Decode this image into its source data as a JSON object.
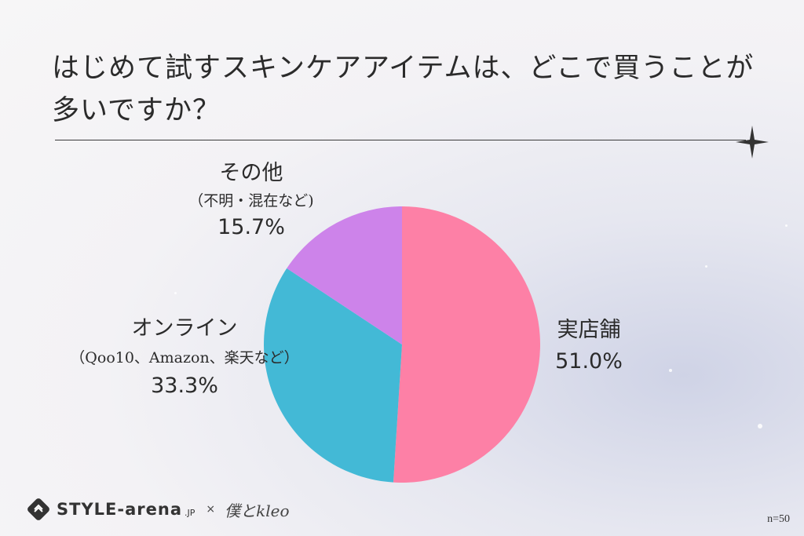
{
  "title": "はじめて試すスキンケアアイテムは、どこで買うことが多いですか？",
  "chart_data": {
    "type": "pie",
    "slices": [
      {
        "name": "実店舗",
        "note": "",
        "value": 51.0,
        "label": "51.0%",
        "color": "#fd80a6"
      },
      {
        "name": "オンライン",
        "note": "（Qoo10、Amazon、楽天など）",
        "value": 33.3,
        "label": "33.3%",
        "color": "#43b9d6"
      },
      {
        "name": "その他",
        "note": "（不明・混在など)",
        "value": 15.7,
        "label": "15.7%",
        "color": "#cd83ea"
      }
    ]
  },
  "footer": {
    "brand": "STYLE-arena",
    "brand_suffix": ".JP",
    "separator": "×",
    "partner": "僕とkleo",
    "sample": "n=50"
  }
}
